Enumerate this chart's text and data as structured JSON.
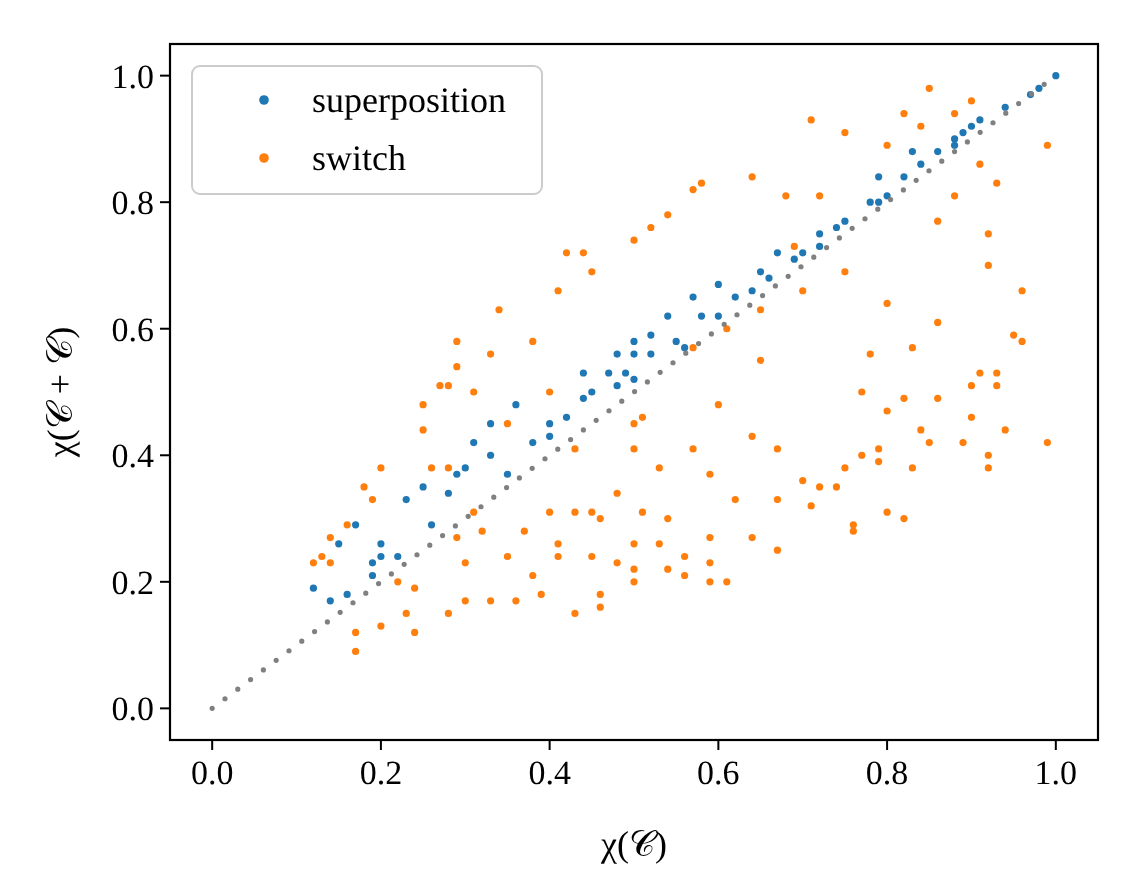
{
  "chart_data": {
    "type": "scatter",
    "xlabel": "χ(𝒞)",
    "ylabel": "χ(𝒞 + 𝒞)",
    "marker": "circle",
    "legend": "top left",
    "xlim": [
      -0.05,
      1.05
    ],
    "ylim": [
      -0.05,
      1.05
    ],
    "xticks": [
      {
        "value": 0.0,
        "label": "0.0"
      },
      {
        "value": 0.2,
        "label": "0.2"
      },
      {
        "value": 0.4,
        "label": "0.4"
      },
      {
        "value": 0.6,
        "label": "0.6"
      },
      {
        "value": 0.8,
        "label": "0.8"
      },
      {
        "value": 1.0,
        "label": "1.0"
      }
    ],
    "yticks": [
      {
        "value": 0.0,
        "label": "0.0"
      },
      {
        "value": 0.2,
        "label": "0.2"
      },
      {
        "value": 0.4,
        "label": "0.4"
      },
      {
        "value": 0.6,
        "label": "0.6"
      },
      {
        "value": 0.8,
        "label": "0.8"
      },
      {
        "value": 1.0,
        "label": "1.0"
      }
    ],
    "series": [
      {
        "name": "superposition",
        "color": "#1f77b4",
        "x": [
          0.12,
          0.14,
          0.16,
          0.15,
          0.17,
          0.19,
          0.2,
          0.22,
          0.2,
          0.23,
          0.25,
          0.26,
          0.28,
          0.29,
          0.31,
          0.33,
          0.36,
          0.4,
          0.44,
          0.48,
          0.19,
          0.44,
          0.48,
          0.5,
          1.0,
          0.97,
          0.94,
          0.91,
          0.88,
          0.84,
          0.82,
          0.79,
          0.75,
          0.72,
          0.67,
          0.69,
          0.65,
          0.6,
          0.57,
          0.54,
          0.52,
          0.5,
          0.49,
          0.6,
          0.79,
          0.83,
          0.89,
          0.4,
          0.38,
          0.45,
          0.47,
          0.52,
          0.55,
          0.58,
          0.62,
          0.66,
          0.7,
          0.74,
          0.78,
          0.86,
          0.9,
          0.3,
          0.33,
          0.35,
          0.42,
          0.5,
          0.56,
          0.64,
          0.72,
          0.8,
          0.88,
          0.98
        ],
        "values": [
          0.19,
          0.17,
          0.18,
          0.26,
          0.29,
          0.23,
          0.24,
          0.24,
          0.26,
          0.33,
          0.35,
          0.29,
          0.34,
          0.37,
          0.42,
          0.45,
          0.48,
          0.43,
          0.49,
          0.51,
          0.21,
          0.53,
          0.56,
          0.58,
          1.0,
          0.97,
          0.95,
          0.93,
          0.9,
          0.86,
          0.84,
          0.8,
          0.77,
          0.75,
          0.72,
          0.71,
          0.69,
          0.67,
          0.65,
          0.62,
          0.59,
          0.56,
          0.53,
          0.62,
          0.84,
          0.88,
          0.91,
          0.45,
          0.42,
          0.5,
          0.53,
          0.56,
          0.58,
          0.62,
          0.65,
          0.68,
          0.72,
          0.76,
          0.8,
          0.88,
          0.92,
          0.38,
          0.4,
          0.37,
          0.46,
          0.52,
          0.57,
          0.66,
          0.73,
          0.81,
          0.89,
          0.98
        ]
      },
      {
        "name": "switch",
        "color": "#ff7f0e",
        "x": [
          0.42,
          0.44,
          0.45,
          0.5,
          0.41,
          0.34,
          0.29,
          0.29,
          0.33,
          0.28,
          0.85,
          0.71,
          0.75,
          0.9,
          0.88,
          0.99,
          0.96,
          0.95,
          0.96,
          0.8,
          0.64,
          0.58,
          0.57,
          0.54,
          0.52,
          0.91,
          0.93,
          0.92,
          0.92,
          0.91,
          0.93,
          0.82,
          0.84,
          0.88,
          0.86,
          0.86,
          0.83,
          0.8,
          0.75,
          0.7,
          0.65,
          0.61,
          0.57,
          0.68,
          0.69,
          0.72,
          0.17,
          0.17,
          0.2,
          0.24,
          0.23,
          0.12,
          0.14,
          0.13,
          0.14,
          0.16,
          0.18,
          0.19,
          0.2,
          0.25,
          0.25,
          0.27,
          0.26,
          0.28,
          0.29,
          0.3,
          0.28,
          0.3,
          0.33,
          0.36,
          0.39,
          0.38,
          0.43,
          0.46,
          0.46,
          0.45,
          0.48,
          0.5,
          0.5,
          0.41,
          0.41,
          0.35,
          0.32,
          0.31,
          0.37,
          0.4,
          0.43,
          0.45,
          0.46,
          0.48,
          0.5,
          0.51,
          0.43,
          0.24,
          0.22,
          0.99,
          0.94,
          0.92,
          0.92,
          0.89,
          0.9,
          0.85,
          0.83,
          0.8,
          0.82,
          0.76,
          0.76,
          0.71,
          0.7,
          0.72,
          0.74,
          0.67,
          0.64,
          0.61,
          0.59,
          0.59,
          0.59,
          0.56,
          0.54,
          0.56,
          0.53,
          0.5,
          0.62,
          0.67,
          0.79,
          0.79,
          0.77,
          0.75,
          0.8,
          0.84,
          0.82,
          0.77,
          0.86,
          0.93,
          0.9,
          0.57,
          0.64,
          0.67,
          0.59,
          0.54,
          0.53,
          0.51,
          0.4,
          0.5,
          0.6,
          0.65,
          0.38,
          0.35,
          0.78,
          0.31
        ],
        "values": [
          0.72,
          0.72,
          0.69,
          0.74,
          0.66,
          0.63,
          0.58,
          0.54,
          0.56,
          0.51,
          0.98,
          0.93,
          0.91,
          0.96,
          0.94,
          0.89,
          0.66,
          0.59,
          0.58,
          0.89,
          0.84,
          0.83,
          0.82,
          0.78,
          0.76,
          0.86,
          0.83,
          0.75,
          0.7,
          0.53,
          0.53,
          0.94,
          0.92,
          0.81,
          0.77,
          0.61,
          0.57,
          0.64,
          0.69,
          0.66,
          0.63,
          0.6,
          0.57,
          0.81,
          0.73,
          0.81,
          0.09,
          0.12,
          0.13,
          0.12,
          0.15,
          0.23,
          0.23,
          0.24,
          0.27,
          0.29,
          0.35,
          0.33,
          0.38,
          0.44,
          0.48,
          0.51,
          0.38,
          0.38,
          0.27,
          0.23,
          0.15,
          0.17,
          0.17,
          0.17,
          0.18,
          0.21,
          0.15,
          0.16,
          0.18,
          0.24,
          0.23,
          0.26,
          0.22,
          0.24,
          0.26,
          0.24,
          0.28,
          0.31,
          0.28,
          0.31,
          0.31,
          0.31,
          0.3,
          0.34,
          0.41,
          0.46,
          0.41,
          0.19,
          0.2,
          0.42,
          0.44,
          0.4,
          0.38,
          0.42,
          0.46,
          0.42,
          0.38,
          0.31,
          0.3,
          0.29,
          0.28,
          0.32,
          0.36,
          0.35,
          0.35,
          0.25,
          0.27,
          0.2,
          0.2,
          0.23,
          0.27,
          0.21,
          0.22,
          0.24,
          0.26,
          0.2,
          0.33,
          0.33,
          0.39,
          0.41,
          0.4,
          0.38,
          0.47,
          0.44,
          0.49,
          0.5,
          0.49,
          0.51,
          0.51,
          0.41,
          0.43,
          0.41,
          0.37,
          0.3,
          0.38,
          0.31,
          0.5,
          0.45,
          0.48,
          0.55,
          0.58,
          0.45,
          0.56,
          0.5
        ]
      },
      {
        "type": "line",
        "color": "#808080",
        "line_style": "dotted",
        "marker": "none",
        "x": [
          0.0,
          1.0
        ],
        "values": [
          0.0,
          1.0
        ]
      }
    ]
  }
}
